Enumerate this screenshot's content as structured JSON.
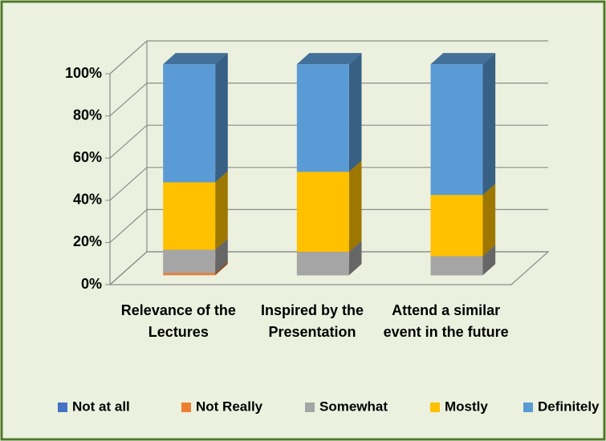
{
  "chart_data": {
    "type": "bar3d_stacked",
    "categories": [
      "Relevance of the Lectures",
      "Inspired by the Presentation",
      "Attend a similar event in the future"
    ],
    "series": [
      {
        "name": "Not at all",
        "color": "#4472c4",
        "values": [
          0,
          0,
          0
        ]
      },
      {
        "name": "Not Really",
        "color": "#ed7d31",
        "values": [
          1,
          0,
          0
        ]
      },
      {
        "name": "Somewhat",
        "color": "#a5a5a5",
        "values": [
          11,
          11,
          9
        ]
      },
      {
        "name": "Mostly",
        "color": "#ffc000",
        "values": [
          32,
          38,
          29
        ]
      },
      {
        "name": "Definitely",
        "color": "#5b9bd5",
        "values": [
          56,
          51,
          62
        ]
      }
    ],
    "ylim": [
      0,
      100
    ],
    "yticks": [
      {
        "value": 0,
        "label": "0%"
      },
      {
        "value": 20,
        "label": "20%"
      },
      {
        "value": 40,
        "label": "40%"
      },
      {
        "value": 60,
        "label": "60%"
      },
      {
        "value": 80,
        "label": "80%"
      },
      {
        "value": 100,
        "label": "100%"
      }
    ],
    "grid": true,
    "legend": "bottom"
  }
}
